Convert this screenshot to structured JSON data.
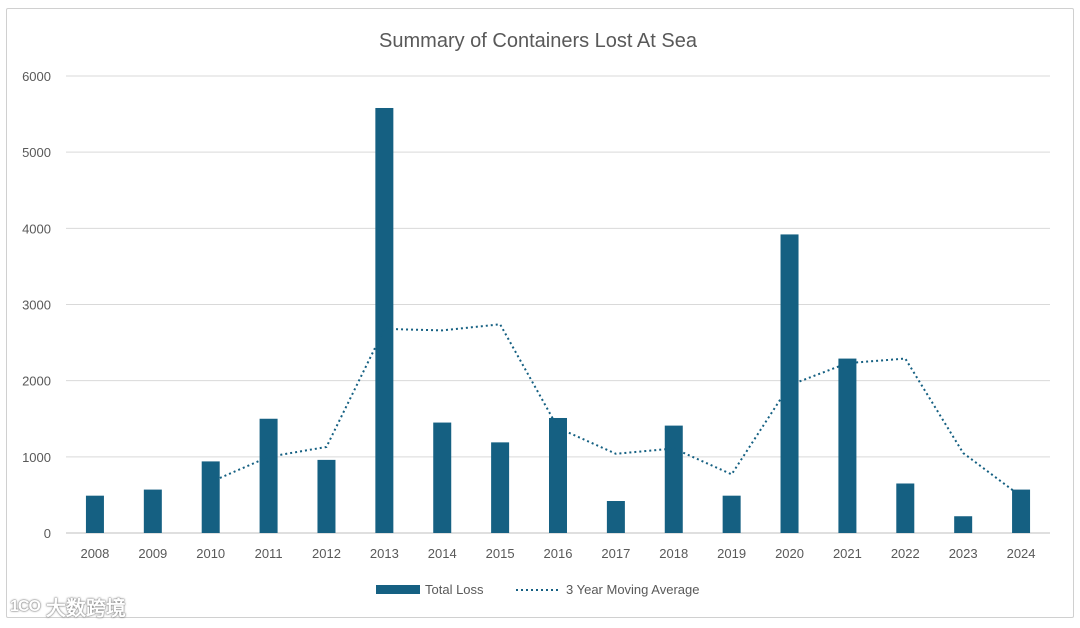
{
  "chart_data": {
    "type": "bar",
    "title": "Summary of Containers Lost At Sea",
    "xlabel": "",
    "ylabel": "",
    "ylim": [
      0,
      6000
    ],
    "yticks": [
      0,
      1000,
      2000,
      3000,
      4000,
      5000,
      6000
    ],
    "grid": true,
    "legend_position": "bottom",
    "categories": [
      "2008",
      "2009",
      "2010",
      "2011",
      "2012",
      "2013",
      "2014",
      "2015",
      "2016",
      "2017",
      "2018",
      "2019",
      "2020",
      "2021",
      "2022",
      "2023",
      "2024"
    ],
    "series": [
      {
        "name": "Total Loss",
        "type": "bar",
        "color": "#156082",
        "values": [
          490,
          570,
          940,
          1500,
          960,
          5580,
          1450,
          1190,
          1510,
          420,
          1410,
          490,
          3920,
          2290,
          650,
          220,
          570
        ]
      },
      {
        "name": "3 Year Moving Average",
        "type": "line",
        "style": "dotted",
        "color": "#156082",
        "values": [
          null,
          null,
          670,
          1000,
          1130,
          2680,
          2660,
          2740,
          1380,
          1040,
          1110,
          770,
          1940,
          2230,
          2290,
          1050,
          480
        ]
      }
    ]
  },
  "watermark": {
    "logo_text": "1CO",
    "text": "大数跨境"
  }
}
